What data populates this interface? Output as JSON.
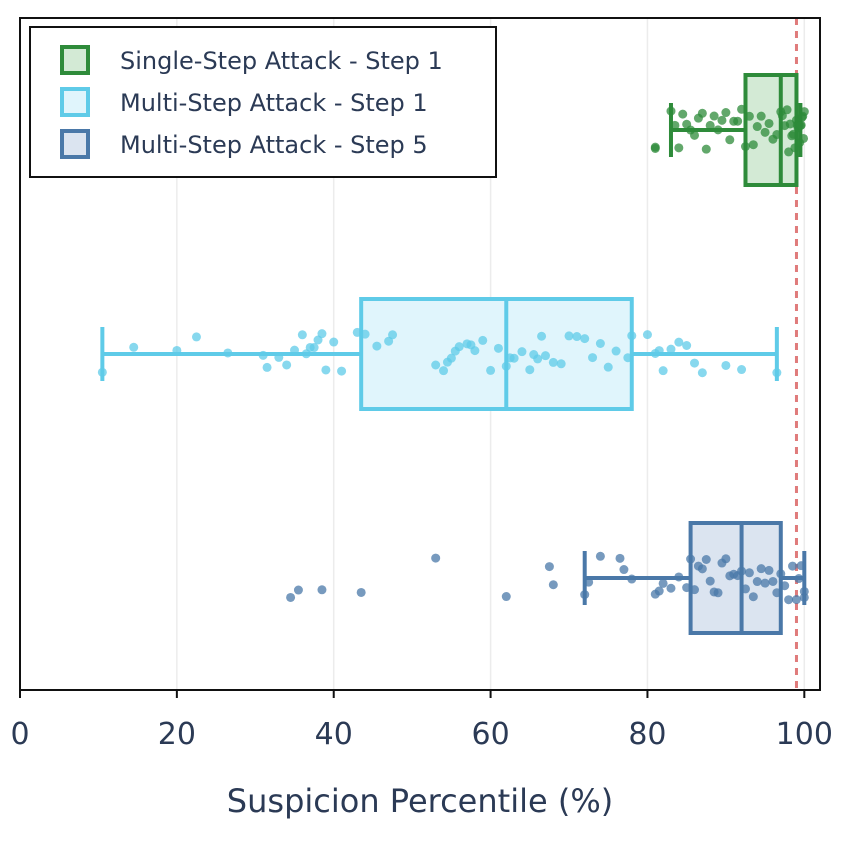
{
  "chart_data": {
    "type": "box",
    "orientation": "horizontal",
    "xlabel": "Suspicion Percentile (%)",
    "xlim": [
      0,
      102
    ],
    "xticks": [
      0,
      20,
      40,
      60,
      80,
      100
    ],
    "grid": "x",
    "threshold_line": {
      "x": 99,
      "style": "dashed",
      "color": "#e07b7b"
    },
    "legend": {
      "placement": "top-left",
      "entries": [
        {
          "label": "Single-Step Attack - Step 1",
          "color": "#2e8b3a",
          "fill": "#d3ead5"
        },
        {
          "label": "Multi-Step Attack - Step 1",
          "color": "#5fcbe8",
          "fill": "#e0f5fc"
        },
        {
          "label": "Multi-Step Attack - Step 5",
          "color": "#4a78a8",
          "fill": "#dbe4f0"
        }
      ]
    },
    "series": [
      {
        "name": "Single-Step Attack - Step 1",
        "color": "#2e8b3a",
        "fill": "#d3ead5",
        "whisker_low": 83,
        "q1": 92.5,
        "median": 97,
        "q3": 99,
        "whisker_high": 99.5,
        "points": [
          81,
          81,
          83,
          83.5,
          84,
          84.5,
          85,
          85.5,
          86,
          86.5,
          87,
          87.5,
          88,
          88.5,
          89,
          89.5,
          90,
          90.5,
          91,
          91.5,
          92,
          92.5,
          93,
          93.5,
          94,
          94.5,
          95,
          95.5,
          96,
          96.5,
          97,
          97.2,
          97.5,
          97.8,
          98,
          98.2,
          98.4,
          98.6,
          98.8,
          99,
          99.1,
          99.2,
          99.3,
          99.4,
          99.5,
          99.6,
          99.7,
          99.8,
          99.9,
          100
        ]
      },
      {
        "name": "Multi-Step Attack - Step 1",
        "color": "#5fcbe8",
        "fill": "#e0f5fc",
        "whisker_low": 10.5,
        "q1": 43.5,
        "median": 62,
        "q3": 78,
        "whisker_high": 96.5,
        "points": [
          10.5,
          14.5,
          20,
          22.5,
          26.5,
          31,
          31.5,
          33,
          34,
          35,
          36,
          36.5,
          37,
          37.5,
          38,
          38.5,
          39,
          40,
          41,
          43,
          44,
          45.5,
          47,
          47.5,
          53,
          54,
          54.5,
          55,
          55.5,
          56,
          57,
          57.5,
          58,
          59,
          60,
          61,
          62,
          62.5,
          63,
          64,
          65,
          65.5,
          66,
          66.5,
          67,
          68,
          69,
          70,
          71,
          72,
          73,
          74,
          75,
          76,
          77.5,
          78,
          80,
          81,
          81.5,
          82,
          83,
          84,
          85,
          86,
          87,
          90,
          92,
          96.5
        ]
      },
      {
        "name": "Multi-Step Attack - Step 5",
        "color": "#4a78a8",
        "fill": "#dbe4f0",
        "whisker_low": 72,
        "q1": 85.5,
        "median": 92,
        "q3": 97,
        "whisker_high": 100,
        "points": [
          34.5,
          35.5,
          38.5,
          43.5,
          53,
          62,
          67.5,
          68,
          72,
          72.5,
          74,
          76.5,
          77,
          78,
          81,
          81.5,
          82,
          83,
          84,
          85,
          85.5,
          86,
          86.5,
          87,
          87.5,
          88,
          88.5,
          89,
          89.5,
          90,
          90.5,
          91,
          91.5,
          92,
          92.5,
          93,
          93.5,
          94,
          94.5,
          95,
          95.5,
          96,
          96.5,
          97,
          97.5,
          98,
          98.5,
          99,
          99.3,
          99.6,
          100,
          100
        ]
      }
    ]
  }
}
